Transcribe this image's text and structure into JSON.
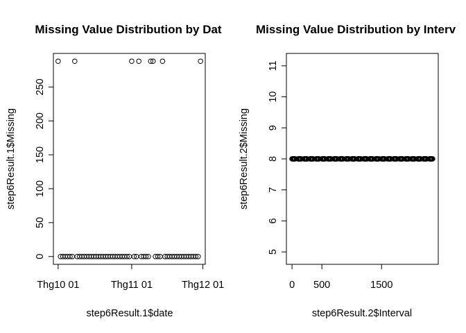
{
  "chart_data": [
    {
      "type": "scatter",
      "title": "Missing Value Distribution by Dat",
      "xlabel": "step6Result.1$date",
      "ylabel": "step6Result.1$Missing",
      "x_ticks": [
        {
          "value": "2012-10-01",
          "label": "Thg10 01"
        },
        {
          "value": "2012-11-01",
          "label": "Thg11 01"
        },
        {
          "value": "2012-12-01",
          "label": "Thg12 01"
        }
      ],
      "y_ticks": [
        "0",
        "50",
        "100",
        "150",
        "200",
        "250"
      ],
      "xlim": [
        "2012-09-29",
        "2012-12-02"
      ],
      "ylim": [
        -11.5,
        299.5
      ],
      "marker": "open-circle",
      "x": [
        "2012-10-01",
        "2012-10-02",
        "2012-10-03",
        "2012-10-04",
        "2012-10-05",
        "2012-10-06",
        "2012-10-07",
        "2012-10-08",
        "2012-10-09",
        "2012-10-10",
        "2012-10-11",
        "2012-10-12",
        "2012-10-13",
        "2012-10-14",
        "2012-10-15",
        "2012-10-16",
        "2012-10-17",
        "2012-10-18",
        "2012-10-19",
        "2012-10-20",
        "2012-10-21",
        "2012-10-22",
        "2012-10-23",
        "2012-10-24",
        "2012-10-25",
        "2012-10-26",
        "2012-10-27",
        "2012-10-28",
        "2012-10-29",
        "2012-10-30",
        "2012-10-31",
        "2012-11-01",
        "2012-11-02",
        "2012-11-03",
        "2012-11-04",
        "2012-11-05",
        "2012-11-06",
        "2012-11-07",
        "2012-11-08",
        "2012-11-09",
        "2012-11-10",
        "2012-11-11",
        "2012-11-12",
        "2012-11-13",
        "2012-11-14",
        "2012-11-15",
        "2012-11-16",
        "2012-11-17",
        "2012-11-18",
        "2012-11-19",
        "2012-11-20",
        "2012-11-21",
        "2012-11-22",
        "2012-11-23",
        "2012-11-24",
        "2012-11-25",
        "2012-11-26",
        "2012-11-27",
        "2012-11-28",
        "2012-11-29",
        "2012-11-30"
      ],
      "y": [
        288,
        0,
        0,
        0,
        0,
        0,
        0,
        288,
        0,
        0,
        0,
        0,
        0,
        0,
        0,
        0,
        0,
        0,
        0,
        0,
        0,
        0,
        0,
        0,
        0,
        0,
        0,
        0,
        0,
        0,
        0,
        288,
        0,
        0,
        288,
        0,
        0,
        0,
        0,
        288,
        288,
        0,
        0,
        0,
        288,
        0,
        0,
        0,
        0,
        0,
        0,
        0,
        0,
        0,
        0,
        0,
        0,
        0,
        0,
        0,
        288
      ]
    },
    {
      "type": "scatter",
      "title": "Missing Value Distribution by Interv",
      "xlabel": "step6Result.2$Interval",
      "ylabel": "step6Result.2$Missing",
      "x_ticks": [
        {
          "value": 0,
          "label": "0"
        },
        {
          "value": 500,
          "label": "500"
        },
        {
          "value": 1500,
          "label": "1500"
        }
      ],
      "y_ticks": [
        "5",
        "6",
        "7",
        "8",
        "9",
        "10",
        "11"
      ],
      "xlim": [
        -94.2,
        2449.2
      ],
      "ylim": [
        4.6,
        11.4
      ],
      "marker": "open-circle",
      "intervals": {
        "hours": 24,
        "minute_step": 5
      },
      "y_constant": 8
    }
  ]
}
